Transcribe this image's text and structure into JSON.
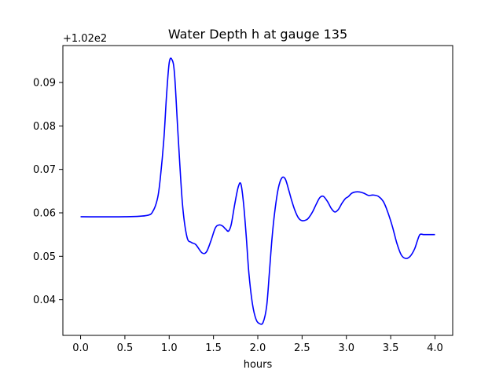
{
  "chart_data": {
    "type": "line",
    "title": "Water Depth h at gauge 135",
    "xlabel": "hours",
    "ylabel": "",
    "y_offset_label": "+1.02e2",
    "xlim": [
      -0.2,
      4.2
    ],
    "ylim": [
      0.0318,
      0.0985
    ],
    "xticks": [
      0.0,
      0.5,
      1.0,
      1.5,
      2.0,
      2.5,
      3.0,
      3.5,
      4.0
    ],
    "xtick_labels": [
      "0.0",
      "0.5",
      "1.0",
      "1.5",
      "2.0",
      "2.5",
      "3.0",
      "3.5",
      "4.0"
    ],
    "yticks": [
      0.04,
      0.05,
      0.06,
      0.07,
      0.08,
      0.09
    ],
    "ytick_labels": [
      "0.04",
      "0.05",
      "0.06",
      "0.07",
      "0.08",
      "0.09"
    ],
    "grid": false,
    "series": [
      {
        "color": "#0000ff",
        "x": [
          0.0,
          0.5,
          0.75,
          0.82,
          0.87,
          0.9,
          0.94,
          0.97,
          1.0,
          1.03,
          1.06,
          1.1,
          1.15,
          1.2,
          1.25,
          1.3,
          1.37,
          1.42,
          1.47,
          1.52,
          1.56,
          1.6,
          1.64,
          1.67,
          1.7,
          1.74,
          1.78,
          1.81,
          1.84,
          1.87,
          1.9,
          1.94,
          1.98,
          2.02,
          2.06,
          2.1,
          2.13,
          2.16,
          2.19,
          2.23,
          2.27,
          2.31,
          2.35,
          2.38,
          2.42,
          2.46,
          2.5,
          2.55,
          2.58,
          2.62,
          2.66,
          2.7,
          2.74,
          2.79,
          2.83,
          2.87,
          2.91,
          2.95,
          2.99,
          3.02,
          3.06,
          3.1,
          3.15,
          3.2,
          3.25,
          3.3,
          3.36,
          3.42,
          3.47,
          3.52,
          3.57,
          3.62,
          3.67,
          3.72,
          3.77,
          3.8,
          3.83,
          3.87,
          3.92,
          3.96,
          4.0
        ],
        "y": [
          0.0591,
          0.0591,
          0.0594,
          0.0605,
          0.0635,
          0.068,
          0.077,
          0.087,
          0.0945,
          0.0953,
          0.092,
          0.078,
          0.062,
          0.0545,
          0.0532,
          0.0527,
          0.0508,
          0.051,
          0.0535,
          0.0565,
          0.0572,
          0.057,
          0.0562,
          0.0558,
          0.0573,
          0.062,
          0.066,
          0.0666,
          0.062,
          0.0545,
          0.046,
          0.039,
          0.0355,
          0.0345,
          0.0348,
          0.0385,
          0.046,
          0.054,
          0.06,
          0.0655,
          0.068,
          0.0678,
          0.0652,
          0.063,
          0.0605,
          0.0588,
          0.0582,
          0.0584,
          0.059,
          0.0603,
          0.062,
          0.0635,
          0.0638,
          0.0625,
          0.061,
          0.0602,
          0.0608,
          0.0622,
          0.0633,
          0.0637,
          0.0645,
          0.0648,
          0.0648,
          0.0645,
          0.064,
          0.0641,
          0.0638,
          0.0625,
          0.06,
          0.0568,
          0.053,
          0.0503,
          0.0495,
          0.05,
          0.0517,
          0.0535,
          0.055,
          0.055,
          0.055,
          0.055,
          0.055
        ]
      }
    ]
  }
}
